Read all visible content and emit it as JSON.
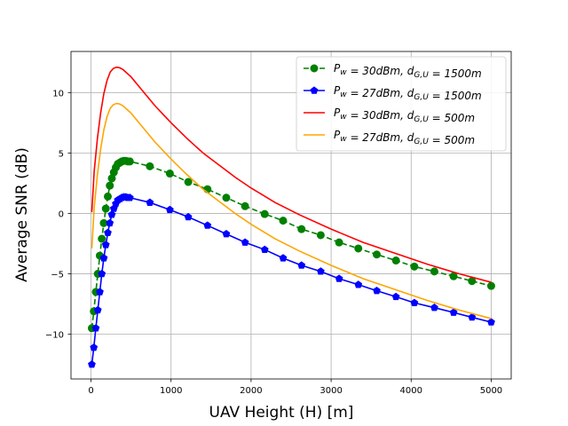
{
  "chart_data": {
    "type": "line",
    "xlabel": "UAV Height (H) [m]",
    "ylabel": "Average SNR (dB)",
    "xlim": [
      -250,
      5250
    ],
    "ylim": [
      -13.7,
      13.4
    ],
    "xticks": [
      0,
      1000,
      2000,
      3000,
      4000,
      5000
    ],
    "yticks": [
      -10,
      -5,
      0,
      5,
      10
    ],
    "grid": true,
    "legend_position": "top-right",
    "series": [
      {
        "name": "P_w=30dBm, d_{G,U}=1500m",
        "legend_main": "P",
        "legend_sub1": "w",
        "legend_mid": " = 30dBm, d",
        "legend_sub2": "G,U",
        "legend_end": " = 1500m",
        "color": "#008000",
        "dash": "dashed",
        "marker": "circle",
        "x": [
          10,
          35,
          60,
          85,
          110,
          135,
          160,
          185,
          210,
          235,
          260,
          285,
          310,
          335,
          360,
          385,
          410,
          435,
          460,
          485,
          735,
          985,
          1215,
          1455,
          1690,
          1925,
          2170,
          2400,
          2630,
          2870,
          3100,
          3340,
          3570,
          3810,
          4040,
          4290,
          4530,
          4760,
          5000
        ],
        "y": [
          -9.5,
          -8.1,
          -6.5,
          -5.0,
          -3.5,
          -2.1,
          -0.8,
          0.4,
          1.4,
          2.3,
          2.9,
          3.4,
          3.8,
          4.1,
          4.2,
          4.3,
          4.35,
          4.35,
          4.3,
          4.3,
          3.9,
          3.3,
          2.6,
          2.0,
          1.3,
          0.6,
          -0.05,
          -0.6,
          -1.3,
          -1.8,
          -2.4,
          -2.9,
          -3.4,
          -3.9,
          -4.4,
          -4.8,
          -5.2,
          -5.6,
          -6.0
        ]
      },
      {
        "name": "P_w=27dBm, d_{G,U}=1500m",
        "legend_main": "P",
        "legend_sub1": "w",
        "legend_mid": " = 27dBm, d",
        "legend_sub2": "G,U",
        "legend_end": " = 1500m",
        "color": "#0000ff",
        "dash": "solid",
        "marker": "pentagon",
        "x": [
          10,
          35,
          60,
          85,
          110,
          135,
          160,
          185,
          210,
          235,
          260,
          285,
          310,
          335,
          360,
          385,
          410,
          435,
          460,
          485,
          735,
          985,
          1215,
          1455,
          1690,
          1925,
          2170,
          2400,
          2630,
          2870,
          3100,
          3340,
          3570,
          3810,
          4040,
          4290,
          4530,
          4760,
          5000
        ],
        "y": [
          -12.5,
          -11.1,
          -9.5,
          -8.0,
          -6.5,
          -5.0,
          -3.7,
          -2.6,
          -1.6,
          -0.8,
          -0.1,
          0.4,
          0.8,
          1.1,
          1.2,
          1.3,
          1.35,
          1.35,
          1.3,
          1.3,
          0.9,
          0.3,
          -0.3,
          -1.0,
          -1.7,
          -2.4,
          -3.0,
          -3.7,
          -4.3,
          -4.8,
          -5.4,
          -5.9,
          -6.4,
          -6.9,
          -7.4,
          -7.8,
          -8.2,
          -8.6,
          -9.0
        ]
      },
      {
        "name": "P_w=30dBm, d_{G,U}=500m",
        "legend_main": "P",
        "legend_sub1": "w",
        "legend_mid": " = 30dBm, d",
        "legend_sub2": "G,U",
        "legend_end": " = 500m",
        "color": "#ff0000",
        "dash": "solid",
        "marker": "none",
        "x": [
          10,
          40,
          80,
          120,
          160,
          200,
          240,
          280,
          320,
          360,
          400,
          450,
          500,
          600,
          700,
          800,
          900,
          1000,
          1200,
          1400,
          1600,
          1800,
          2000,
          2300,
          2600,
          3000,
          3400,
          3800,
          4200,
          4600,
          5000
        ],
        "y": [
          0.1,
          3.5,
          6.2,
          8.3,
          9.9,
          11.0,
          11.7,
          12.0,
          12.1,
          12.05,
          11.9,
          11.6,
          11.3,
          10.5,
          9.7,
          8.9,
          8.2,
          7.5,
          6.2,
          5.0,
          4.0,
          3.0,
          2.1,
          0.9,
          -0.1,
          -1.3,
          -2.4,
          -3.3,
          -4.2,
          -5.0,
          -5.7
        ]
      },
      {
        "name": "P_w=27dBm, d_{G,U}=500m",
        "legend_main": "P",
        "legend_sub1": "w",
        "legend_mid": " = 27dBm, d",
        "legend_sub2": "G,U",
        "legend_end": " = 500m",
        "color": "#ffa500",
        "dash": "solid",
        "marker": "none",
        "x": [
          10,
          40,
          80,
          120,
          160,
          200,
          240,
          280,
          320,
          360,
          400,
          450,
          500,
          600,
          700,
          800,
          900,
          1000,
          1200,
          1400,
          1600,
          1800,
          2000,
          2300,
          2600,
          3000,
          3400,
          3800,
          4200,
          4600,
          5000
        ],
        "y": [
          -2.9,
          0.5,
          3.2,
          5.3,
          6.9,
          8.0,
          8.7,
          9.0,
          9.1,
          9.05,
          8.9,
          8.6,
          8.3,
          7.5,
          6.7,
          5.9,
          5.2,
          4.5,
          3.2,
          2.0,
          1.0,
          0.0,
          -0.9,
          -2.1,
          -3.1,
          -4.3,
          -5.4,
          -6.3,
          -7.2,
          -8.0,
          -8.7
        ]
      }
    ]
  }
}
